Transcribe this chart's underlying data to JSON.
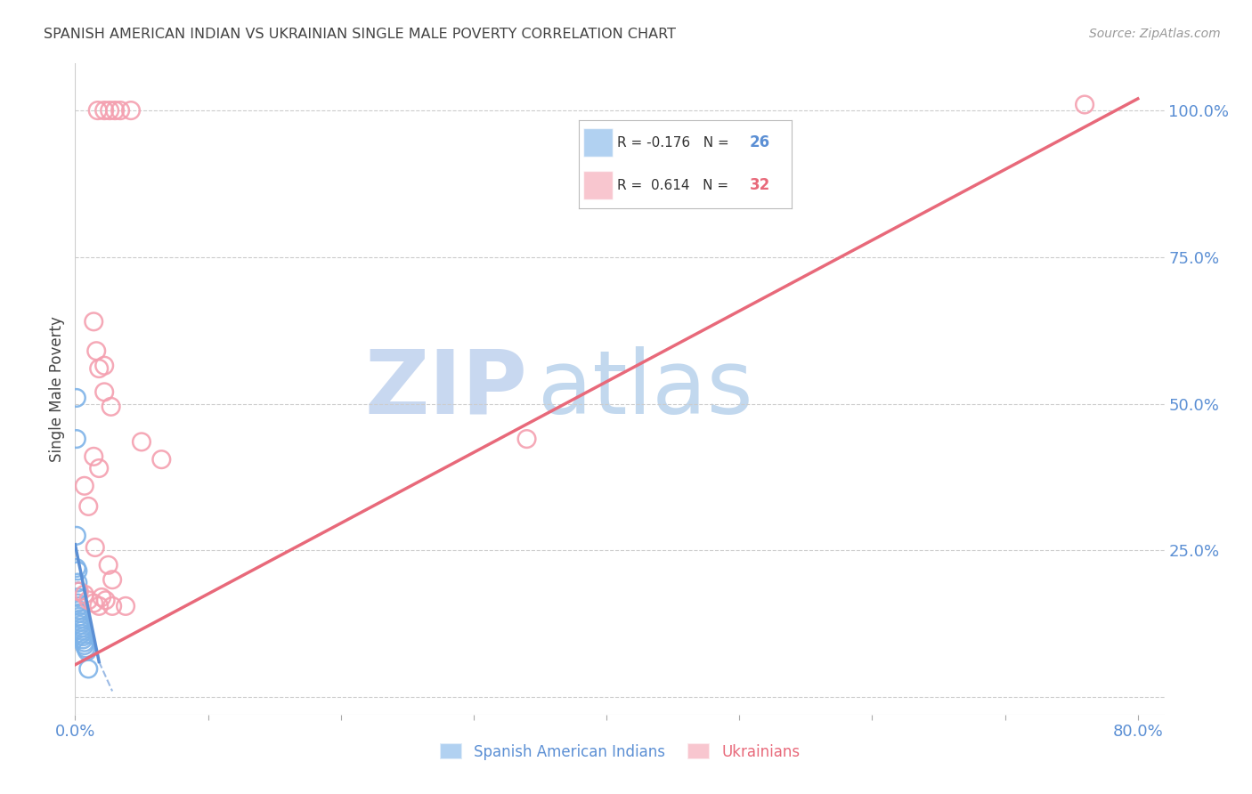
{
  "title": "SPANISH AMERICAN INDIAN VS UKRAINIAN SINGLE MALE POVERTY CORRELATION CHART",
  "source": "Source: ZipAtlas.com",
  "ylabel": "Single Male Poverty",
  "legend_label1": "Spanish American Indians",
  "legend_label2": "Ukrainians",
  "r_blue": -0.176,
  "n_blue": 26,
  "r_pink": 0.614,
  "n_pink": 32,
  "watermark_zip": "ZIP",
  "watermark_atlas": "atlas",
  "blue_scatter": [
    [
      0.001,
      0.51
    ],
    [
      0.001,
      0.44
    ],
    [
      0.001,
      0.275
    ],
    [
      0.002,
      0.215
    ],
    [
      0.002,
      0.195
    ],
    [
      0.002,
      0.18
    ],
    [
      0.002,
      0.17
    ],
    [
      0.002,
      0.16
    ],
    [
      0.003,
      0.155
    ],
    [
      0.003,
      0.148
    ],
    [
      0.003,
      0.143
    ],
    [
      0.003,
      0.137
    ],
    [
      0.004,
      0.133
    ],
    [
      0.004,
      0.128
    ],
    [
      0.004,
      0.123
    ],
    [
      0.005,
      0.118
    ],
    [
      0.005,
      0.113
    ],
    [
      0.005,
      0.108
    ],
    [
      0.006,
      0.103
    ],
    [
      0.006,
      0.098
    ],
    [
      0.007,
      0.093
    ],
    [
      0.007,
      0.088
    ],
    [
      0.008,
      0.083
    ],
    [
      0.009,
      0.078
    ],
    [
      0.01,
      0.048
    ],
    [
      0.001,
      0.22
    ]
  ],
  "pink_scatter": [
    [
      0.017,
      1.0
    ],
    [
      0.022,
      1.0
    ],
    [
      0.026,
      1.0
    ],
    [
      0.03,
      1.0
    ],
    [
      0.034,
      1.0
    ],
    [
      0.042,
      1.0
    ],
    [
      0.014,
      0.64
    ],
    [
      0.016,
      0.59
    ],
    [
      0.018,
      0.56
    ],
    [
      0.022,
      0.565
    ],
    [
      0.022,
      0.52
    ],
    [
      0.027,
      0.495
    ],
    [
      0.014,
      0.41
    ],
    [
      0.018,
      0.39
    ],
    [
      0.007,
      0.36
    ],
    [
      0.01,
      0.325
    ],
    [
      0.34,
      0.44
    ],
    [
      0.065,
      0.405
    ],
    [
      0.015,
      0.255
    ],
    [
      0.025,
      0.225
    ],
    [
      0.02,
      0.17
    ],
    [
      0.023,
      0.165
    ],
    [
      0.007,
      0.175
    ],
    [
      0.01,
      0.165
    ],
    [
      0.014,
      0.16
    ],
    [
      0.018,
      0.155
    ],
    [
      0.003,
      0.18
    ],
    [
      0.038,
      0.155
    ],
    [
      0.028,
      0.155
    ],
    [
      0.028,
      0.2
    ],
    [
      0.76,
      1.01
    ],
    [
      0.05,
      0.435
    ]
  ],
  "blue_line": [
    [
      0.0,
      0.26
    ],
    [
      0.018,
      0.06
    ]
  ],
  "pink_line": [
    [
      0.0,
      0.055
    ],
    [
      0.8,
      1.02
    ]
  ],
  "blue_dash_line": [
    [
      0.018,
      0.06
    ],
    [
      0.028,
      0.01
    ]
  ],
  "xlim": [
    0.0,
    0.82
  ],
  "ylim": [
    -0.03,
    1.08
  ],
  "xticks": [
    0.0,
    0.1,
    0.2,
    0.3,
    0.4,
    0.5,
    0.6,
    0.7,
    0.8
  ],
  "xtick_show": [
    0.0,
    0.2,
    0.4,
    0.6,
    0.8
  ],
  "yticks": [
    0.0,
    0.25,
    0.5,
    0.75,
    1.0
  ],
  "blue_color": "#7EB3E8",
  "pink_color": "#F4A0B0",
  "blue_line_color": "#5B8FD4",
  "pink_line_color": "#E8697A",
  "grid_color": "#CCCCCC",
  "title_color": "#444444",
  "axis_label_color": "#5B8FD4",
  "watermark_color": "#C8D8F0",
  "watermark_atlas_color": "#A8C8E8"
}
